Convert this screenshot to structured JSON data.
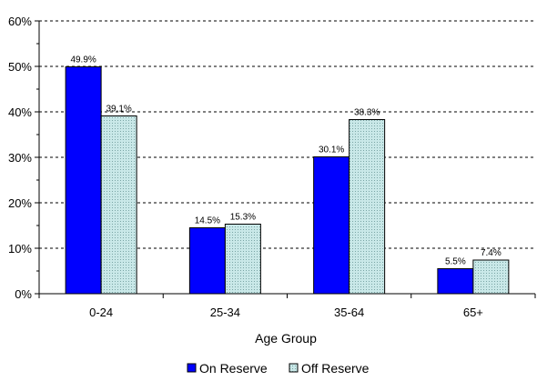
{
  "chart_data": {
    "type": "bar",
    "title": "",
    "xlabel": "Age Group",
    "ylabel": "",
    "categories": [
      "0-24",
      "25-34",
      "35-64",
      "65+"
    ],
    "series": [
      {
        "name": "On Reserve",
        "values": [
          49.9,
          14.5,
          30.1,
          5.5
        ],
        "labels": [
          "49.9%",
          "14.5%",
          "30.1%",
          "5.5%"
        ],
        "color": "#0000ff"
      },
      {
        "name": "Off Reserve",
        "values": [
          39.1,
          15.3,
          38.3,
          7.4
        ],
        "labels": [
          "39.1%",
          "15.3%",
          "38.3%",
          "7.4%"
        ],
        "color": "#c7e6e6"
      }
    ],
    "ylim": [
      0,
      60
    ],
    "yticks": [
      0,
      10,
      20,
      30,
      40,
      50,
      60
    ],
    "ytick_labels": [
      "0%",
      "10%",
      "20%",
      "30%",
      "40%",
      "50%",
      "60%"
    ],
    "grid": true,
    "legend": "bottom-center"
  }
}
